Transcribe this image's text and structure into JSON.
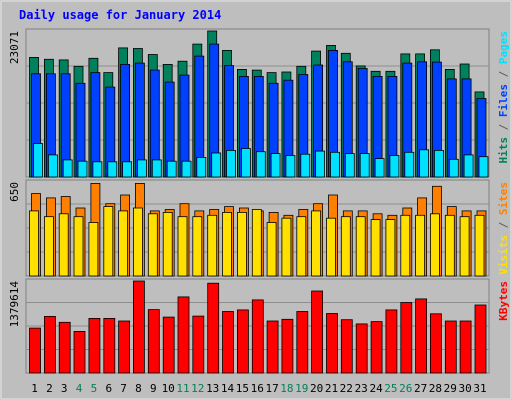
{
  "chart_data": {
    "type": "bar",
    "title": "Daily usage for January 2014",
    "x": [
      "1",
      "2",
      "3",
      "4",
      "5",
      "6",
      "7",
      "8",
      "9",
      "10",
      "11",
      "12",
      "13",
      "14",
      "15",
      "16",
      "17",
      "18",
      "19",
      "20",
      "21",
      "22",
      "23",
      "24",
      "25",
      "26",
      "27",
      "28",
      "29",
      "30",
      "31"
    ],
    "weekend_days": [
      "4",
      "5",
      "11",
      "12",
      "18",
      "19",
      "25",
      "26"
    ],
    "panels": [
      {
        "id": "top",
        "ymax_label": "23071",
        "ylim": [
          0,
          23071
        ],
        "side_labels": [
          {
            "text": "Hits",
            "color": "#00805c"
          },
          {
            "text": " / ",
            "color": "#606060"
          },
          {
            "text": "Files",
            "color": "#0040ff"
          },
          {
            "text": " / ",
            "color": "#606060"
          },
          {
            "text": "Pages",
            "color": "#00e0ff"
          }
        ],
        "series": [
          {
            "name": "Hits",
            "color": "#00805c",
            "values": [
              18900,
              18600,
              18500,
              17500,
              18750,
              16500,
              20400,
              20300,
              19350,
              17800,
              18300,
              21000,
              23071,
              20000,
              17000,
              16900,
              16500,
              16600,
              17500,
              19900,
              20800,
              19550,
              17550,
              16700,
              16700,
              19450,
              19450,
              20100,
              17000,
              17850,
              13450
            ]
          },
          {
            "name": "Files",
            "color": "#0040ff",
            "values": [
              16300,
              16300,
              16300,
              14800,
              16500,
              14200,
              17800,
              18000,
              16900,
              15000,
              16100,
              19100,
              21000,
              17600,
              15900,
              15900,
              14800,
              15300,
              16200,
              17700,
              20000,
              18200,
              17150,
              15900,
              15900,
              18000,
              18200,
              18150,
              15500,
              15500,
              12400
            ]
          },
          {
            "name": "Pages",
            "color": "#00e0ff",
            "values": [
              5300,
              3500,
              2700,
              2500,
              2400,
              2400,
              2400,
              2700,
              2700,
              2500,
              2500,
              3100,
              3800,
              4200,
              4500,
              4000,
              3700,
              3400,
              3600,
              4100,
              3900,
              3700,
              3700,
              2900,
              3400,
              3900,
              4300,
              4200,
              2800,
              3500,
              3200
            ]
          }
        ]
      },
      {
        "id": "middle",
        "ymax_label": "650",
        "ylim": [
          0,
          650
        ],
        "side_labels": [
          {
            "text": "Visits",
            "color": "#ffe000"
          },
          {
            "text": " / ",
            "color": "#606060"
          },
          {
            "text": "Sites",
            "color": "#ff8000"
          }
        ],
        "series": [
          {
            "name": "Sites",
            "color": "#ff8000",
            "values": [
              570,
              540,
              550,
              470,
              640,
              500,
              560,
              640,
              450,
              460,
              500,
              450,
              460,
              480,
              470,
              450,
              440,
              420,
              460,
              500,
              560,
              450,
              450,
              430,
              420,
              470,
              540,
              620,
              480,
              450,
              450
            ]
          },
          {
            "name": "Visits",
            "color": "#ffe000",
            "values": [
              450,
              410,
              430,
              410,
              370,
              480,
              450,
              470,
              430,
              440,
              410,
              410,
              420,
              440,
              440,
              460,
              370,
              400,
              410,
              450,
              400,
              410,
              410,
              390,
              390,
              420,
              420,
              430,
              420,
              410,
              420
            ]
          }
        ]
      },
      {
        "id": "bottom",
        "ymax_label": "1379614",
        "ylim": [
          0,
          1379614
        ],
        "side_labels": [
          {
            "text": "KBytes",
            "color": "#ff0000"
          }
        ],
        "series": [
          {
            "name": "KBytes",
            "color": "#ff0000",
            "values": [
              673000,
              849000,
              761000,
              624000,
              819000,
              819000,
              780000,
              1379614,
              950000,
              839000,
              1141000,
              854000,
              1346000,
              922000,
              946000,
              1096000,
              780000,
              805000,
              922000,
              1229000,
              893000,
              800000,
              737000,
              771000,
              946000,
              1057000,
              1111000,
              888000,
              780000,
              780000,
              1019000
            ]
          }
        ]
      }
    ]
  }
}
